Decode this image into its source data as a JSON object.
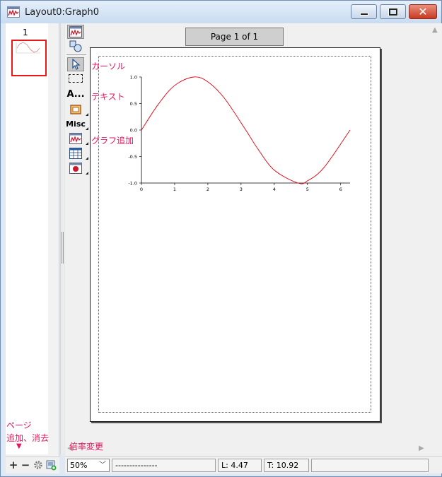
{
  "window": {
    "title": "Layout0:Graph0",
    "minimize_glyph": "─",
    "close_glyph": "✕"
  },
  "pages_panel": {
    "page_number": "1",
    "add_glyph": "+",
    "remove_glyph": "−"
  },
  "page_label": "Page 1 of 1",
  "tools": {
    "text_tool_label": "A...",
    "misc_label": "Misc"
  },
  "graph": {
    "color": "#e0000e"
  },
  "chart_data": {
    "type": "line",
    "title": "",
    "xlabel": "",
    "ylabel": "",
    "xlim": [
      0,
      6.283
    ],
    "ylim": [
      -1.0,
      1.0
    ],
    "x_ticks": [
      "0",
      "1",
      "2",
      "3",
      "4",
      "5",
      "6"
    ],
    "y_ticks": [
      "1.0",
      "0.5",
      "0.0",
      "-0.5",
      "-1.0"
    ],
    "series": [
      {
        "x": [
          0,
          0.5,
          1.0,
          1.5708,
          2.0,
          2.5,
          3.1416,
          3.5,
          4.0,
          4.7124,
          5.0,
          5.5,
          6.283
        ],
        "y": [
          0,
          0.479,
          0.841,
          1.0,
          0.909,
          0.598,
          0,
          -0.351,
          -0.757,
          -1.0,
          -0.959,
          -0.706,
          0
        ]
      }
    ]
  },
  "statusbar": {
    "zoom": "50%",
    "dashes": "---------------",
    "left": "L: 4.47",
    "top": "T: 10.92"
  },
  "annotations": {
    "cursor": "カーソル",
    "text": "テキスト",
    "add_graph": "グラフ追加",
    "page_ops_line1": "ページ",
    "page_ops_line2": "追加、消去",
    "zoom_change": "倍率変更"
  },
  "colors": {
    "annotation": "#e4165a",
    "thumbnail_border": "#e81818"
  }
}
